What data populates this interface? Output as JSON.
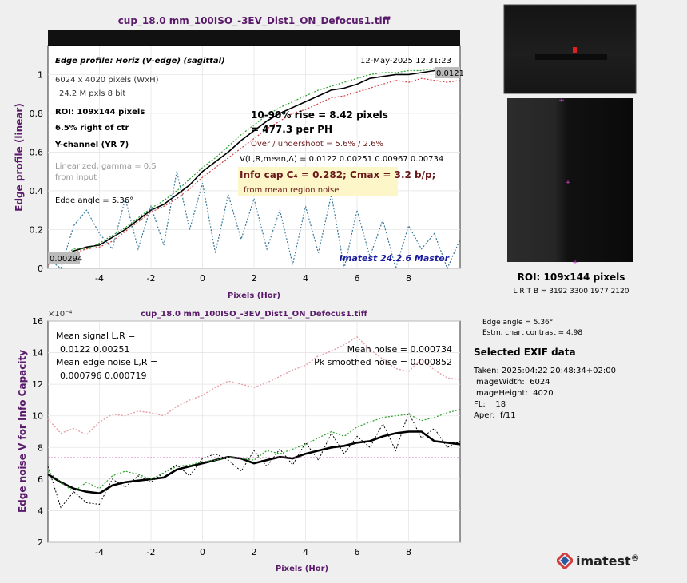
{
  "top_chart": {
    "title": "cup_18.0 mm_100ISO_-3EV_Dist1_ON_Defocus1.tiff",
    "profile_label": "Edge profile: Horiz (V-edge) (sagittal)",
    "timestamp": "12-May-2025 12:31:23",
    "info_lines": [
      "6024 x 4020 pixels (WxH)",
      "24.2 M pxls   8 bit"
    ],
    "roi": "ROI:  109x144 pixels",
    "position": "6.5% right of ctr",
    "channel": "Y-channel  (YR 7)",
    "linearized": [
      "Linearized, gamma = 0.5",
      "from input"
    ],
    "edge_angle": "Edge angle = 5.36°",
    "rise": "10-90% rise = 8.42 pixels",
    "per_ph": "= 477.3 per PH",
    "overshoot": "Over / undershoot =  5.6% / 2.6%",
    "v_line": "V(L,R,mean,Δ) = 0.0122  0.00251  0.00967  0.00734",
    "info_cap": "Info cap C₄ = 0.282;  Cmax = 3.2 b/p;",
    "info_cap_sub": "from mean region noise",
    "left_value": "0.00294",
    "right_value": "0.0121",
    "watermark": "Imatest 24.2.6 Master",
    "xlabel": "Pixels (Hor)",
    "ylabel": "Edge profile (linear)",
    "xticks": [
      "-4",
      "-2",
      "0",
      "2",
      "4",
      "6",
      "8"
    ],
    "yticks": [
      "0",
      "0.2",
      "0.4",
      "0.6",
      "0.8",
      "1"
    ]
  },
  "bottom_chart": {
    "title": "cup_18.0 mm_100ISO_-3EV_Dist1_ON_Defocus1.tiff",
    "exponent": "×10⁻⁴",
    "mean_signal": [
      "Mean signal L,R =",
      "0.0122  0.00251"
    ],
    "mean_edge_noise": [
      "Mean edge noise L,R =",
      "0.000796  0.000719"
    ],
    "mean_noise": "Mean noise = 0.000734",
    "pk_noise": "Pk smoothed noise = 0.000852",
    "xlabel": "Pixels (Hor)",
    "ylabel": "Edge noise V for Info Capacity",
    "xticks": [
      "-4",
      "-2",
      "0",
      "2",
      "4",
      "6",
      "8"
    ],
    "yticks": [
      "2",
      "4",
      "6",
      "8",
      "10",
      "12",
      "14",
      "16"
    ]
  },
  "roi_panel": {
    "roi_label": "ROI:  109x144 pixels",
    "coords": "L R  T B = 3192 3300  1977 2120",
    "edge_angle": "Edge angle = 5.36°",
    "contrast": "Estm. chart contrast = 4.98"
  },
  "exif": {
    "heading": "Selected EXIF data",
    "lines": [
      "Taken: 2025:04:22 20:48:34+02:00",
      "ImageWidth:  6024",
      "ImageHeight:  4020",
      "FL:    18",
      "Aper:  f/11"
    ]
  },
  "brand": {
    "name": "imatest",
    "mark": "®"
  },
  "colors": {
    "title": "#5a1a6a",
    "accent": "#000000",
    "green": "#2aa02a",
    "red": "#d04040",
    "magenta": "#c040c0",
    "blue": "#1a1aa0"
  },
  "chart_data": [
    {
      "type": "line",
      "title": "cup_18.0 mm_100ISO_-3EV_Dist1_ON_Defocus1.tiff",
      "xlabel": "Pixels (Hor)",
      "ylabel": "Edge profile (linear)",
      "xlim": [
        -6,
        10
      ],
      "ylim": [
        0,
        1.15
      ],
      "series": [
        {
          "style": "black-solid",
          "x": [
            -6,
            -5.5,
            -5,
            -4.5,
            -4,
            -3.5,
            -3,
            -2.5,
            -2,
            -1.5,
            -1,
            -0.5,
            0,
            0.5,
            1,
            1.5,
            2,
            2.5,
            3,
            3.5,
            4,
            4.5,
            5,
            5.5,
            6,
            6.5,
            7,
            7.5,
            8,
            8.5,
            9,
            9.5,
            10
          ],
          "y": [
            0.03,
            0.05,
            0.09,
            0.11,
            0.12,
            0.16,
            0.2,
            0.25,
            0.3,
            0.33,
            0.38,
            0.43,
            0.5,
            0.55,
            0.6,
            0.66,
            0.71,
            0.76,
            0.8,
            0.83,
            0.86,
            0.89,
            0.92,
            0.93,
            0.95,
            0.98,
            0.99,
            1.0,
            1.0,
            1.01,
            1.02,
            1.02,
            1.01
          ]
        },
        {
          "style": "green-dotted",
          "x": [
            -6,
            -5.5,
            -5,
            -4.5,
            -4,
            -3.5,
            -3,
            -2.5,
            -2,
            -1.5,
            -1,
            -0.5,
            0,
            0.5,
            1,
            1.5,
            2,
            2.5,
            3,
            3.5,
            4,
            4.5,
            5,
            5.5,
            6,
            6.5,
            7,
            7.5,
            8,
            8.5,
            9,
            9.5,
            10
          ],
          "y": [
            0.04,
            0.06,
            0.1,
            0.1,
            0.13,
            0.17,
            0.21,
            0.26,
            0.31,
            0.35,
            0.4,
            0.46,
            0.52,
            0.57,
            0.63,
            0.69,
            0.74,
            0.79,
            0.83,
            0.86,
            0.89,
            0.92,
            0.94,
            0.96,
            0.98,
            1.0,
            1.01,
            1.01,
            1.02,
            1.02,
            1.03,
            1.0,
            1.0
          ]
        },
        {
          "style": "red-dotted",
          "x": [
            -6,
            -5.5,
            -5,
            -4.5,
            -4,
            -3.5,
            -3,
            -2.5,
            -2,
            -1.5,
            -1,
            -0.5,
            0,
            0.5,
            1,
            1.5,
            2,
            2.5,
            3,
            3.5,
            4,
            4.5,
            5,
            5.5,
            6,
            6.5,
            7,
            7.5,
            8,
            8.5,
            9,
            9.5,
            10
          ],
          "y": [
            0.02,
            0.04,
            0.08,
            0.1,
            0.11,
            0.14,
            0.19,
            0.24,
            0.29,
            0.32,
            0.36,
            0.41,
            0.47,
            0.52,
            0.57,
            0.62,
            0.67,
            0.72,
            0.76,
            0.8,
            0.82,
            0.85,
            0.88,
            0.89,
            0.91,
            0.93,
            0.95,
            0.97,
            0.96,
            0.98,
            0.97,
            0.96,
            0.97
          ]
        },
        {
          "style": "teal-dotted",
          "x": [
            -6,
            -5.5,
            -5,
            -4.5,
            -4,
            -3.5,
            -3,
            -2.5,
            -2,
            -1.5,
            -1,
            -0.5,
            0,
            0.5,
            1,
            1.5,
            2,
            2.5,
            3,
            3.5,
            4,
            4.5,
            5,
            5.5,
            6,
            6.5,
            7,
            7.5,
            8,
            8.5,
            9,
            9.5,
            10
          ],
          "y": [
            0.05,
            0.0,
            0.22,
            0.3,
            0.18,
            0.1,
            0.36,
            0.1,
            0.32,
            0.12,
            0.5,
            0.2,
            0.44,
            0.08,
            0.38,
            0.15,
            0.36,
            0.1,
            0.3,
            0.02,
            0.32,
            0.08,
            0.38,
            0.0,
            0.3,
            0.06,
            0.25,
            0.0,
            0.22,
            0.1,
            0.18,
            0.0,
            0.15
          ]
        }
      ]
    },
    {
      "type": "line",
      "title": "cup_18.0 mm_100ISO_-3EV_Dist1_ON_Defocus1.tiff",
      "xlabel": "Pixels (Hor)",
      "ylabel": "Edge noise V for Info Capacity",
      "y_scale_note": "×10⁻⁴",
      "xlim": [
        -6,
        10
      ],
      "ylim": [
        2,
        16
      ],
      "series": [
        {
          "style": "black-thick",
          "x": [
            -6,
            -5.5,
            -5,
            -4.5,
            -4,
            -3.5,
            -3,
            -2.5,
            -2,
            -1.5,
            -1,
            -0.5,
            0,
            0.5,
            1,
            1.5,
            2,
            2.5,
            3,
            3.5,
            4,
            4.5,
            5,
            5.5,
            6,
            6.5,
            7,
            7.5,
            8,
            8.5,
            9,
            9.5,
            10
          ],
          "y": [
            6.3,
            5.8,
            5.4,
            5.2,
            5.1,
            5.6,
            5.8,
            5.9,
            6.0,
            6.1,
            6.6,
            6.8,
            7.0,
            7.2,
            7.4,
            7.3,
            7.0,
            7.2,
            7.4,
            7.3,
            7.6,
            7.8,
            8.0,
            8.1,
            8.3,
            8.4,
            8.7,
            8.9,
            9.0,
            9.0,
            8.4,
            8.3,
            8.2
          ]
        },
        {
          "style": "black-dotted",
          "x": [
            -6,
            -5.5,
            -5,
            -4.5,
            -4,
            -3.5,
            -3,
            -2.5,
            -2,
            -1.5,
            -1,
            -0.5,
            0,
            0.5,
            1,
            1.5,
            2,
            2.5,
            3,
            3.5,
            4,
            4.5,
            5,
            5.5,
            6,
            6.5,
            7,
            7.5,
            8,
            8.5,
            9,
            9.5,
            10
          ],
          "y": [
            6.8,
            4.2,
            5.2,
            4.5,
            4.4,
            6.0,
            5.5,
            6.2,
            5.8,
            6.4,
            6.9,
            6.2,
            7.3,
            7.6,
            7.2,
            6.5,
            7.8,
            6.8,
            7.9,
            6.9,
            8.3,
            7.2,
            8.9,
            7.6,
            8.7,
            8.0,
            9.5,
            7.8,
            10.2,
            8.6,
            9.2,
            8.0,
            8.4
          ]
        },
        {
          "style": "green-dotted",
          "x": [
            -6,
            -5.5,
            -5,
            -4.5,
            -4,
            -3.5,
            -3,
            -2.5,
            -2,
            -1.5,
            -1,
            -0.5,
            0,
            0.5,
            1,
            1.5,
            2,
            2.5,
            3,
            3.5,
            4,
            4.5,
            5,
            5.5,
            6,
            6.5,
            7,
            7.5,
            8,
            8.5,
            9,
            9.5,
            10
          ],
          "y": [
            6.5,
            5.8,
            5.2,
            5.8,
            5.4,
            6.2,
            6.5,
            6.3,
            6.0,
            6.4,
            6.8,
            6.9,
            7.1,
            7.2,
            7.4,
            7.3,
            7.2,
            7.8,
            7.6,
            7.9,
            8.2,
            8.6,
            9.0,
            8.7,
            9.3,
            9.6,
            9.9,
            10.0,
            10.1,
            9.7,
            9.9,
            10.2,
            10.4
          ]
        },
        {
          "style": "pink-dotted",
          "x": [
            -6,
            -5.5,
            -5,
            -4.5,
            -4,
            -3.5,
            -3,
            -2.5,
            -2,
            -1.5,
            -1,
            -0.5,
            0,
            0.5,
            1,
            1.5,
            2,
            2.5,
            3,
            3.5,
            4,
            4.5,
            5,
            5.5,
            6,
            6.5,
            7,
            7.5,
            8,
            8.5,
            9,
            9.5,
            10
          ],
          "y": [
            9.8,
            8.9,
            9.2,
            8.8,
            9.6,
            10.1,
            10.0,
            10.3,
            10.2,
            10.0,
            10.6,
            11.0,
            11.3,
            11.8,
            12.2,
            12.0,
            11.8,
            12.1,
            12.5,
            12.9,
            13.2,
            13.8,
            14.1,
            14.5,
            15.0,
            14.2,
            13.6,
            13.0,
            12.8,
            13.6,
            12.9,
            12.4,
            12.3
          ]
        },
        {
          "style": "magenta-flat-dotted",
          "x": [
            -6,
            10
          ],
          "y": [
            7.34,
            7.34
          ]
        }
      ]
    }
  ]
}
